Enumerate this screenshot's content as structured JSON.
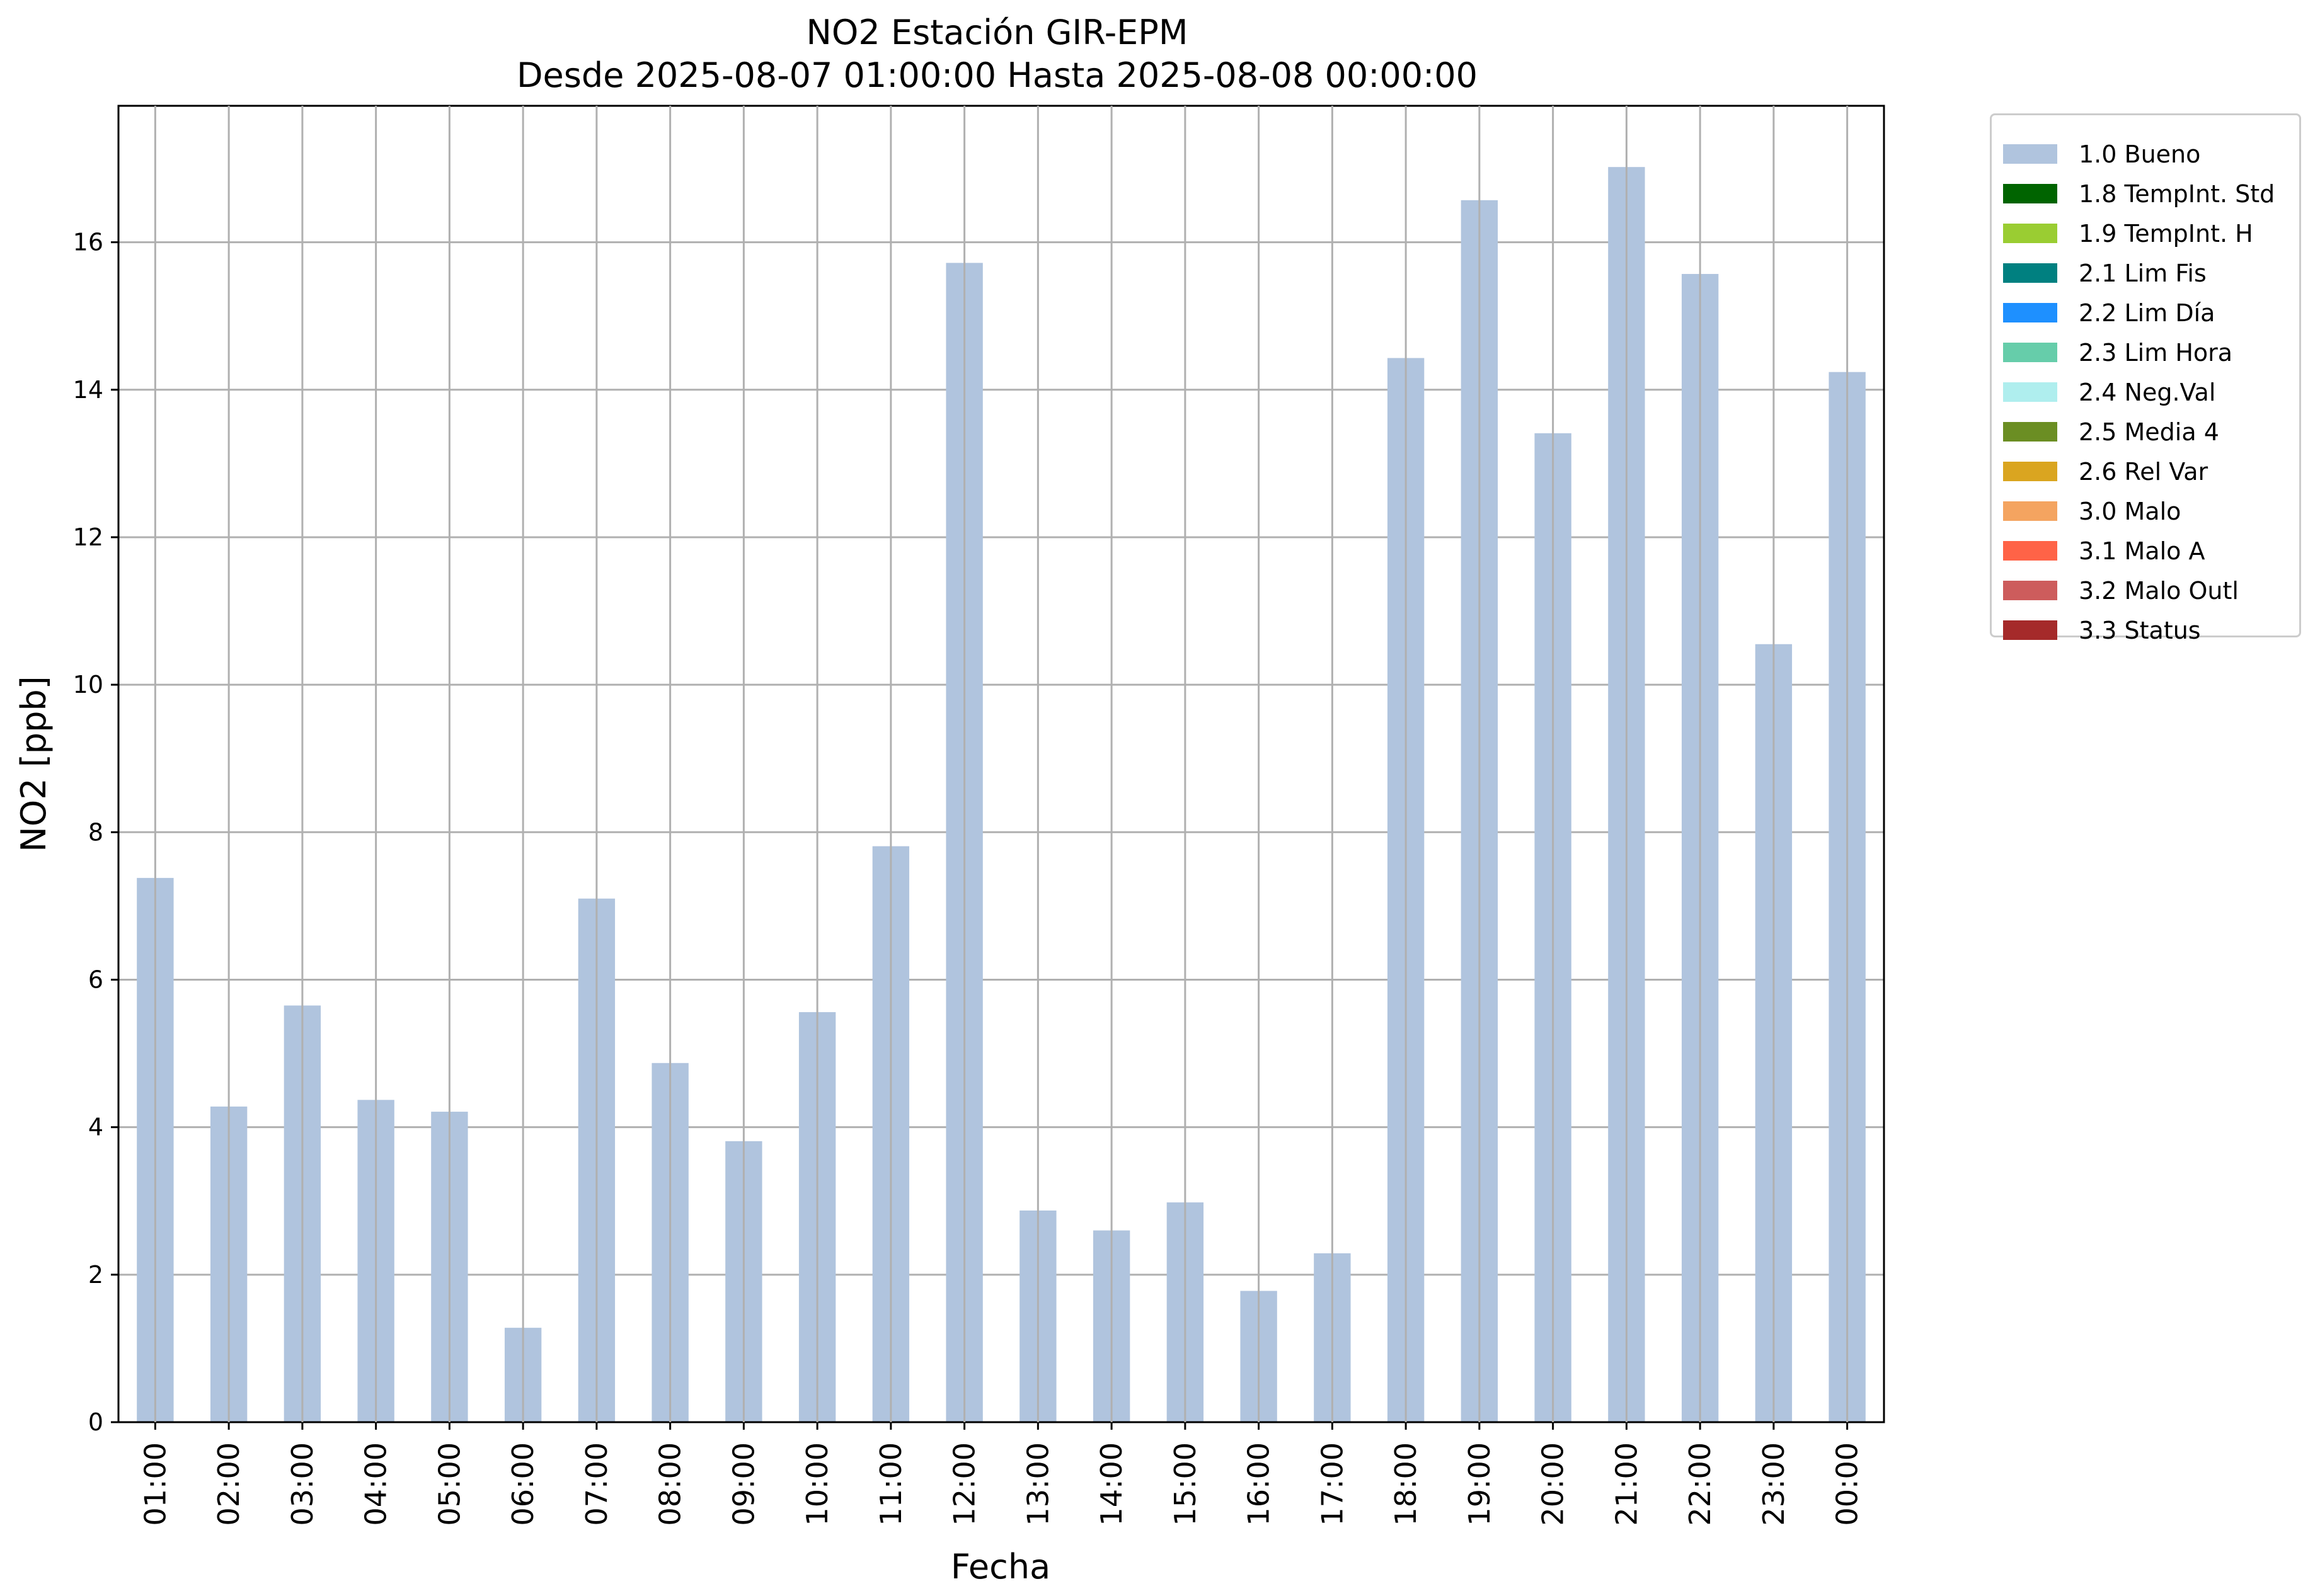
{
  "chart_data": {
    "type": "bar",
    "title": "NO2 Estación GIR-EPM",
    "subtitle": "Desde 2025-08-07 01:00:00 Hasta 2025-08-08 00:00:00",
    "xlabel": "Fecha",
    "ylabel": "NO2 [ppb]",
    "ylim": [
      0,
      17.85
    ],
    "yticks": [
      "0",
      "2",
      "4",
      "6",
      "8",
      "10",
      "12",
      "14",
      "16"
    ],
    "grid": true,
    "legend_position": "outside-top-right",
    "categories": [
      "01:00",
      "02:00",
      "03:00",
      "04:00",
      "05:00",
      "06:00",
      "07:00",
      "08:00",
      "09:00",
      "10:00",
      "11:00",
      "12:00",
      "13:00",
      "14:00",
      "15:00",
      "16:00",
      "17:00",
      "18:00",
      "19:00",
      "20:00",
      "21:00",
      "22:00",
      "23:00",
      "00:00"
    ],
    "series": [
      {
        "name": "1.0 Bueno",
        "color": "#b0c4de",
        "values": [
          7.38,
          4.28,
          5.65,
          4.37,
          4.21,
          1.28,
          7.1,
          4.87,
          3.81,
          5.56,
          7.81,
          15.72,
          2.87,
          2.6,
          2.98,
          1.78,
          2.29,
          14.43,
          16.57,
          13.41,
          17.02,
          15.57,
          10.55,
          14.24
        ]
      }
    ],
    "legend": [
      {
        "label": "1.0 Bueno",
        "color": "#b0c4de"
      },
      {
        "label": "1.8 TempInt. Std",
        "color": "#006400"
      },
      {
        "label": "1.9 TempInt. H",
        "color": "#9acd32"
      },
      {
        "label": "2.1 Lim Fis",
        "color": "#008080"
      },
      {
        "label": "2.2 Lim Día",
        "color": "#1e90ff"
      },
      {
        "label": "2.3 Lim Hora",
        "color": "#66cdaa"
      },
      {
        "label": "2.4 Neg.Val",
        "color": "#afeeee"
      },
      {
        "label": "2.5 Media 4",
        "color": "#6b8e23"
      },
      {
        "label": "2.6 Rel Var",
        "color": "#daa520"
      },
      {
        "label": "3.0 Malo",
        "color": "#f4a460"
      },
      {
        "label": "3.1 Malo A",
        "color": "#ff6347"
      },
      {
        "label": "3.2 Malo Outl",
        "color": "#cd5c5c"
      },
      {
        "label": "3.3 Status",
        "color": "#a52a2a"
      }
    ]
  }
}
